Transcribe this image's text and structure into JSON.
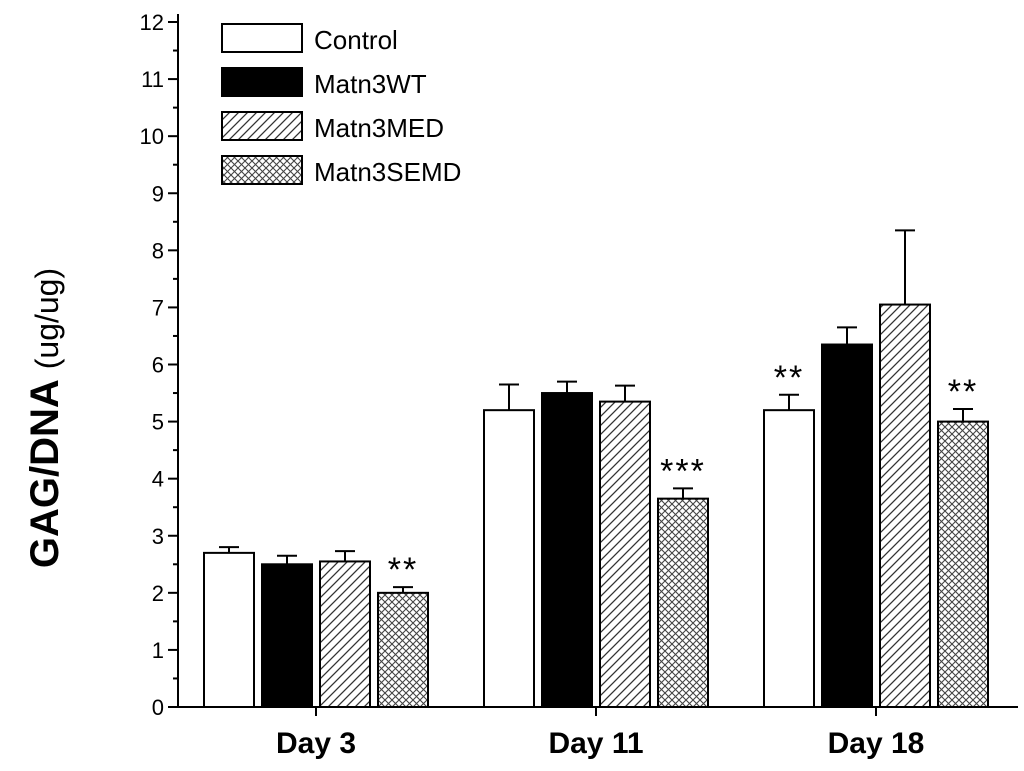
{
  "chart_data": {
    "type": "bar",
    "title": "",
    "xlabel": "",
    "ylabel_bold": "GAG/DNA",
    "ylabel_units": "(ug/ug)",
    "ylim": [
      0,
      12
    ],
    "yticks": [
      "0",
      "1",
      "2",
      "3",
      "4",
      "5",
      "6",
      "7",
      "8",
      "9",
      "10",
      "11",
      "12"
    ],
    "legend_position": "top-left",
    "categories": [
      "Day 3",
      "Day 11",
      "Day 18"
    ],
    "series": [
      {
        "name": "Control",
        "pattern": "solid-white",
        "values": [
          2.7,
          5.2,
          5.2
        ],
        "errors": [
          0.1,
          0.45,
          0.27
        ],
        "significance": [
          "",
          "",
          "**"
        ]
      },
      {
        "name": "Matn3WT",
        "pattern": "solid-black",
        "values": [
          2.5,
          5.5,
          6.35
        ],
        "errors": [
          0.15,
          0.2,
          0.3
        ],
        "significance": [
          "",
          "",
          ""
        ]
      },
      {
        "name": "Matn3MED",
        "pattern": "diagonal",
        "values": [
          2.55,
          5.35,
          7.05
        ],
        "errors": [
          0.18,
          0.28,
          1.3
        ],
        "significance": [
          "",
          "",
          ""
        ]
      },
      {
        "name": "Matn3SEMD",
        "pattern": "crosshatch",
        "values": [
          2.0,
          3.65,
          5.0
        ],
        "errors": [
          0.1,
          0.18,
          0.22
        ],
        "significance": [
          "**",
          "***",
          "**"
        ]
      }
    ]
  }
}
